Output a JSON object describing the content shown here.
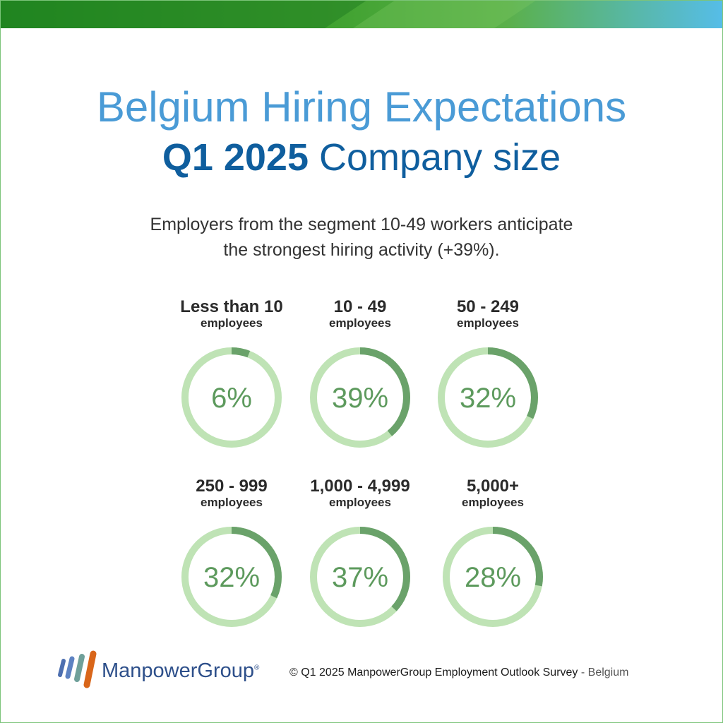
{
  "header": {
    "title": "Belgium Hiring Expectations",
    "subtitle_bold": "Q1 2025",
    "subtitle_rest": "Company size"
  },
  "description": {
    "line1": "Employers from the segment 10-49 workers anticipate",
    "line2": "the strongest hiring activity (+39%)."
  },
  "chart_data": {
    "type": "pie",
    "style": "donut",
    "unit": "%",
    "colors": {
      "filled": "#6aa26a",
      "track": "#bfe3b5",
      "value_text": "#5d9a5d"
    },
    "segments": [
      {
        "label": "Less than 10",
        "sub": "employees",
        "value": 6,
        "display": "6%"
      },
      {
        "label": "10 - 49",
        "sub": "employees",
        "value": 39,
        "display": "39%"
      },
      {
        "label": "50 - 249",
        "sub": "employees",
        "value": 32,
        "display": "32%"
      },
      {
        "label": "250 - 999",
        "sub": "employees",
        "value": 32,
        "display": "32%"
      },
      {
        "label": "1,000 - 4,999",
        "sub": "employees",
        "value": 37,
        "display": "37%"
      },
      {
        "label": "5,000+",
        "sub": "employees",
        "value": 28,
        "display": "28%"
      }
    ]
  },
  "footer": {
    "logo_text": "ManpowerGroup",
    "logo_mark": "®",
    "copyright": "© Q1 2025 ManpowerGroup Employment Outlook Survey",
    "separator": " - ",
    "country": "Belgium"
  },
  "colors": {
    "title": "#4a9bd6",
    "subtitle": "#0f5e9e",
    "logo_text": "#2d4f8a"
  }
}
